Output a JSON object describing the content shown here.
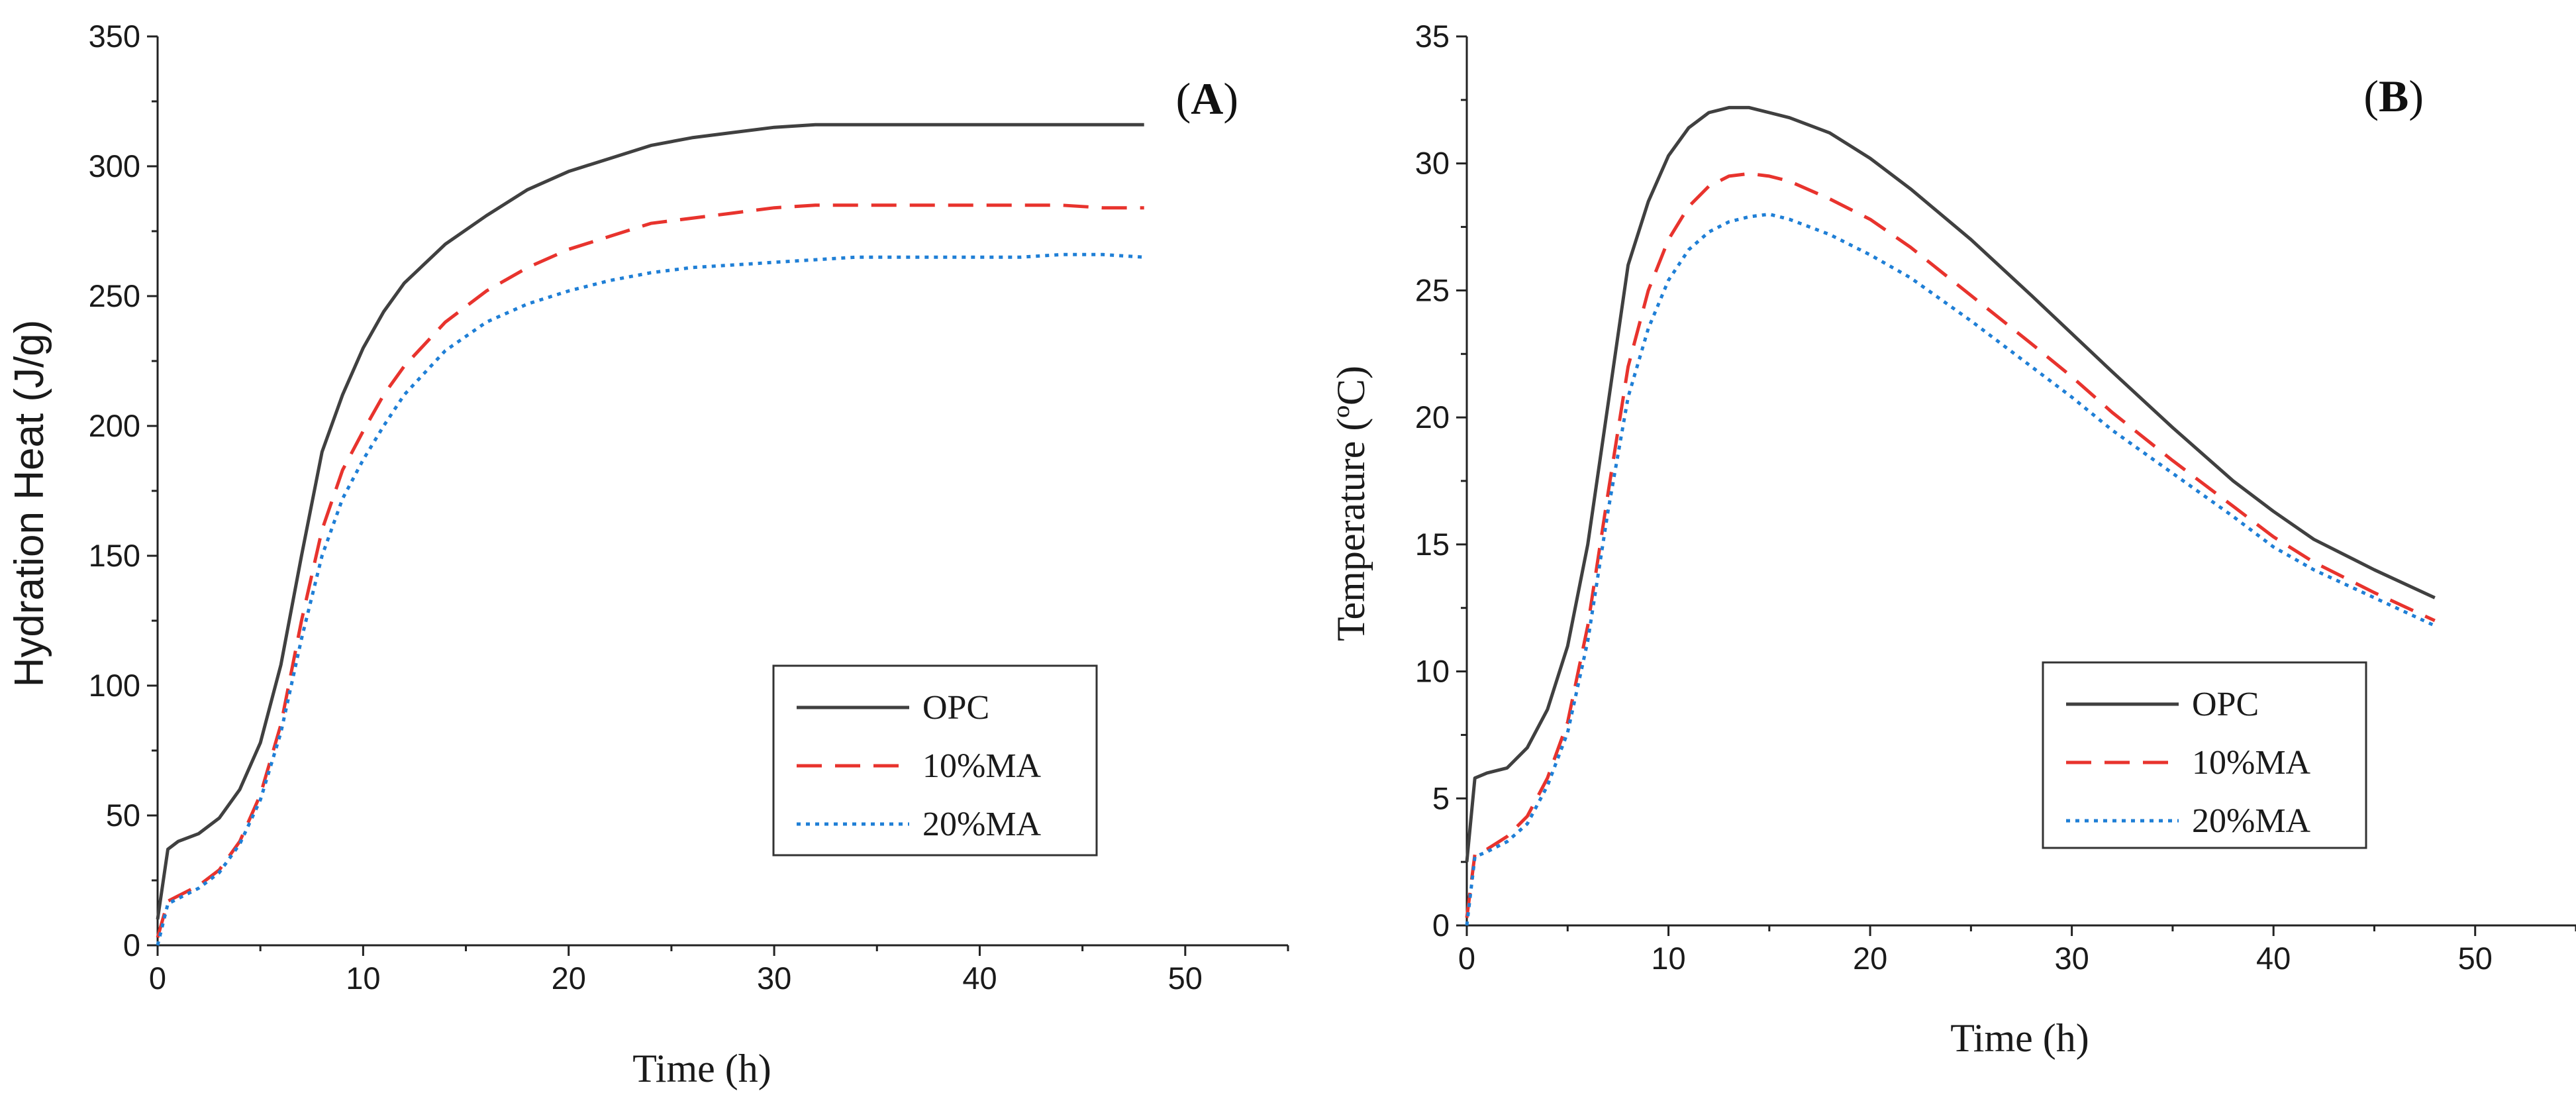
{
  "chart_data": [
    {
      "panel_label": "A",
      "type": "line",
      "xlabel": "Time (h)",
      "ylabel": "Hydration Heat (J/g)",
      "xlim": [
        0,
        55
      ],
      "ylim": [
        0,
        350
      ],
      "xticks": [
        "0",
        "10",
        "20",
        "30",
        "40",
        "50"
      ],
      "yticks": [
        "0",
        "50",
        "100",
        "150",
        "200",
        "250",
        "300",
        "350"
      ],
      "legend_position": "bottom-right",
      "series": [
        {
          "name": "OPC",
          "color": "#404040",
          "dash": "solid",
          "x": [
            0,
            0.5,
            1,
            2,
            3,
            4,
            5,
            6,
            7,
            8,
            9,
            10,
            11,
            12,
            14,
            16,
            18,
            20,
            22,
            24,
            26,
            28,
            30,
            32,
            34,
            36,
            38,
            40,
            42,
            44,
            46,
            48
          ],
          "y": [
            10,
            37,
            40,
            43,
            49,
            60,
            78,
            108,
            150,
            190,
            212,
            230,
            244,
            255,
            270,
            281,
            291,
            298,
            303,
            308,
            311,
            313,
            315,
            316,
            316,
            316,
            316,
            316,
            316,
            316,
            316,
            316
          ]
        },
        {
          "name": "10%MA",
          "color": "#e8332d",
          "dash": "dashed",
          "x": [
            0,
            0.5,
            1,
            2,
            3,
            4,
            5,
            6,
            7,
            8,
            9,
            10,
            11,
            12,
            14,
            16,
            18,
            20,
            22,
            24,
            26,
            28,
            30,
            32,
            34,
            36,
            38,
            40,
            42,
            44,
            46,
            48
          ],
          "y": [
            3,
            17,
            19,
            23,
            29,
            40,
            58,
            85,
            125,
            160,
            183,
            198,
            212,
            223,
            240,
            252,
            261,
            268,
            273,
            278,
            280,
            282,
            284,
            285,
            285,
            285,
            285,
            285,
            285,
            285,
            284,
            284
          ]
        },
        {
          "name": "20%MA",
          "color": "#1f7fd6",
          "dash": "dotted",
          "x": [
            0,
            0.5,
            1,
            2,
            3,
            4,
            5,
            6,
            7,
            8,
            9,
            10,
            11,
            12,
            14,
            16,
            18,
            20,
            22,
            24,
            26,
            28,
            30,
            32,
            34,
            36,
            38,
            40,
            42,
            44,
            46,
            48
          ],
          "y": [
            0,
            16,
            18,
            22,
            28,
            39,
            56,
            82,
            118,
            150,
            172,
            187,
            200,
            212,
            229,
            240,
            247,
            252,
            256,
            259,
            261,
            262,
            263,
            264,
            265,
            265,
            265,
            265,
            265,
            266,
            266,
            265
          ]
        }
      ]
    },
    {
      "panel_label": "B",
      "type": "line",
      "xlabel": "Time (h)",
      "ylabel": "Temperature (ºC)",
      "xlim": [
        0,
        55
      ],
      "ylim": [
        0,
        35
      ],
      "xticks": [
        "0",
        "10",
        "20",
        "30",
        "40",
        "50"
      ],
      "yticks": [
        "0",
        "5",
        "10",
        "15",
        "20",
        "25",
        "30",
        "35"
      ],
      "legend_position": "bottom-right",
      "series": [
        {
          "name": "OPC",
          "color": "#404040",
          "dash": "solid",
          "x": [
            0,
            0.4,
            1,
            2,
            3,
            4,
            5,
            6,
            7,
            8,
            9,
            10,
            11,
            12,
            13,
            14,
            15,
            16,
            18,
            20,
            22,
            25,
            28,
            30,
            32,
            35,
            38,
            40,
            42,
            45,
            48
          ],
          "y": [
            2.5,
            5.8,
            6.0,
            6.2,
            7.0,
            8.5,
            11.0,
            15.0,
            20.5,
            26.0,
            28.5,
            30.3,
            31.4,
            32.0,
            32.2,
            32.2,
            32.0,
            31.8,
            31.2,
            30.2,
            29.0,
            27.0,
            24.8,
            23.3,
            21.8,
            19.6,
            17.5,
            16.3,
            15.2,
            14.0,
            12.9
          ]
        },
        {
          "name": "10%MA",
          "color": "#e8332d",
          "dash": "dashed",
          "x": [
            0,
            0.4,
            1,
            2,
            3,
            4,
            5,
            6,
            7,
            8,
            9,
            10,
            11,
            12,
            13,
            14,
            15,
            16,
            18,
            20,
            22,
            25,
            28,
            30,
            32,
            35,
            38,
            40,
            42,
            45,
            48
          ],
          "y": [
            0.3,
            2.8,
            3.0,
            3.5,
            4.3,
            5.8,
            8.0,
            11.8,
            17.0,
            22.0,
            25.0,
            27.0,
            28.3,
            29.1,
            29.5,
            29.6,
            29.5,
            29.3,
            28.6,
            27.8,
            26.7,
            24.8,
            22.9,
            21.6,
            20.2,
            18.3,
            16.5,
            15.3,
            14.3,
            13.1,
            12.0
          ]
        },
        {
          "name": "20%MA",
          "color": "#1f7fd6",
          "dash": "dotted",
          "x": [
            0,
            0.4,
            1,
            2,
            3,
            4,
            5,
            6,
            7,
            8,
            9,
            10,
            11,
            12,
            13,
            14,
            15,
            16,
            18,
            20,
            22,
            25,
            28,
            30,
            32,
            35,
            38,
            40,
            42,
            45,
            48
          ],
          "y": [
            0,
            2.7,
            2.9,
            3.3,
            4.0,
            5.5,
            7.6,
            11.2,
            16.3,
            20.8,
            23.5,
            25.4,
            26.6,
            27.3,
            27.7,
            27.9,
            28.0,
            27.8,
            27.2,
            26.4,
            25.5,
            23.8,
            22.0,
            20.8,
            19.5,
            17.8,
            16.1,
            14.9,
            14.0,
            12.9,
            11.8
          ]
        }
      ]
    }
  ]
}
